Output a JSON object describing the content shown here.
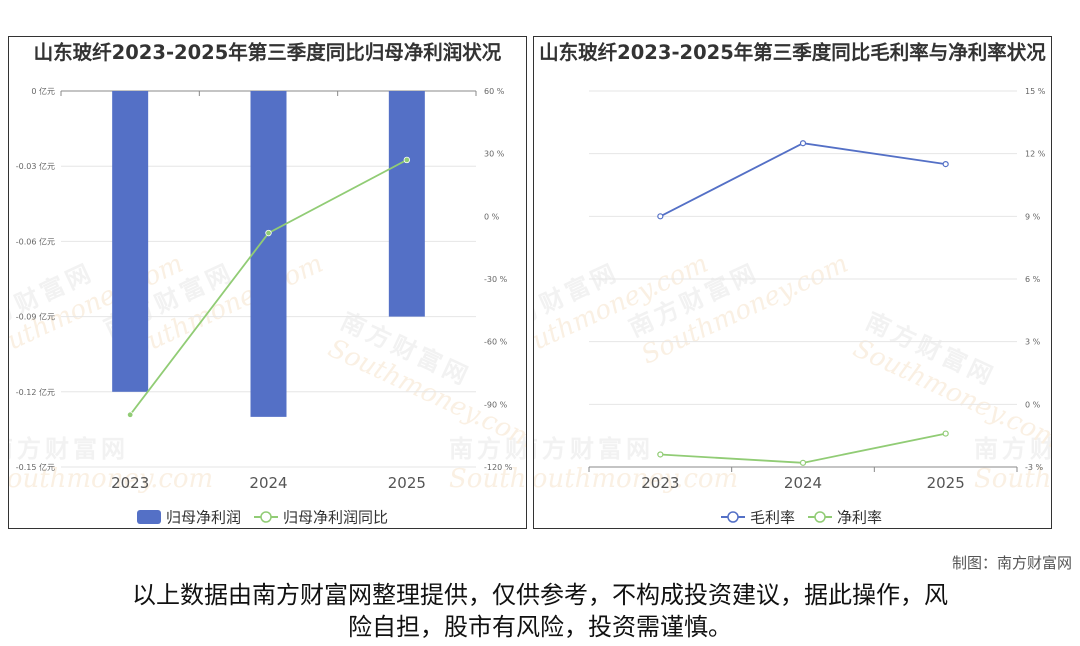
{
  "chart_data": [
    {
      "type": "bar",
      "title": "山东玻纤2023-2025年第三季度同比归母净利润状况",
      "categories": [
        "2023",
        "2024",
        "2025"
      ],
      "series": [
        {
          "name": "归母净利润",
          "type": "bar",
          "axis": "left",
          "values": [
            -0.12,
            -0.13,
            -0.09
          ],
          "color": "#5470c6"
        },
        {
          "name": "归母净利润同比",
          "type": "line",
          "axis": "right",
          "values": [
            -95,
            -8,
            27
          ],
          "color": "#91cc75"
        }
      ],
      "y_left": {
        "unit": "亿元",
        "range": [
          -0.15,
          0
        ],
        "ticks": [
          0,
          -0.03,
          -0.06,
          -0.09,
          -0.12,
          -0.15
        ],
        "tick_labels": [
          "0 亿元",
          "-0.03 亿元",
          "-0.06 亿元",
          "-0.09 亿元",
          "-0.12 亿元",
          "-0.15 亿元"
        ]
      },
      "y_right": {
        "unit": "%",
        "range": [
          -120,
          60
        ],
        "ticks": [
          60,
          30,
          0,
          -30,
          -60,
          -90,
          -120
        ],
        "tick_labels": [
          "60 %",
          "30 %",
          "0 %",
          "-30 %",
          "-60 %",
          "-90 %",
          "-120 %"
        ]
      },
      "grid": true,
      "legend_position": "bottom"
    },
    {
      "type": "line",
      "title": "山东玻纤2023-2025年第三季度同比毛利率与净利率状况",
      "categories": [
        "2023",
        "2024",
        "2025"
      ],
      "series": [
        {
          "name": "毛利率",
          "values": [
            9.0,
            12.5,
            11.5
          ],
          "color": "#5470c6"
        },
        {
          "name": "净利率",
          "values": [
            -2.4,
            -2.8,
            -1.4
          ],
          "color": "#91cc75"
        }
      ],
      "y_right": {
        "unit": "%",
        "range": [
          -3,
          15
        ],
        "ticks": [
          15,
          12,
          9,
          6,
          3,
          0,
          -3
        ],
        "tick_labels": [
          "15 %",
          "12 %",
          "9 %",
          "6 %",
          "3 %",
          "0 %",
          "-3 %"
        ]
      },
      "grid": true,
      "legend_position": "bottom"
    }
  ],
  "watermark": {
    "cn": "南方财富网",
    "en": "Southmoney.com"
  },
  "footer": {
    "credit": "制图：南方财富网",
    "disclaimer_line1": "以上数据由南方财富网整理提供，仅供参考，不构成投资建议，据此操作，风",
    "disclaimer_line2": "险自担，股市有风险，投资需谨慎。"
  }
}
